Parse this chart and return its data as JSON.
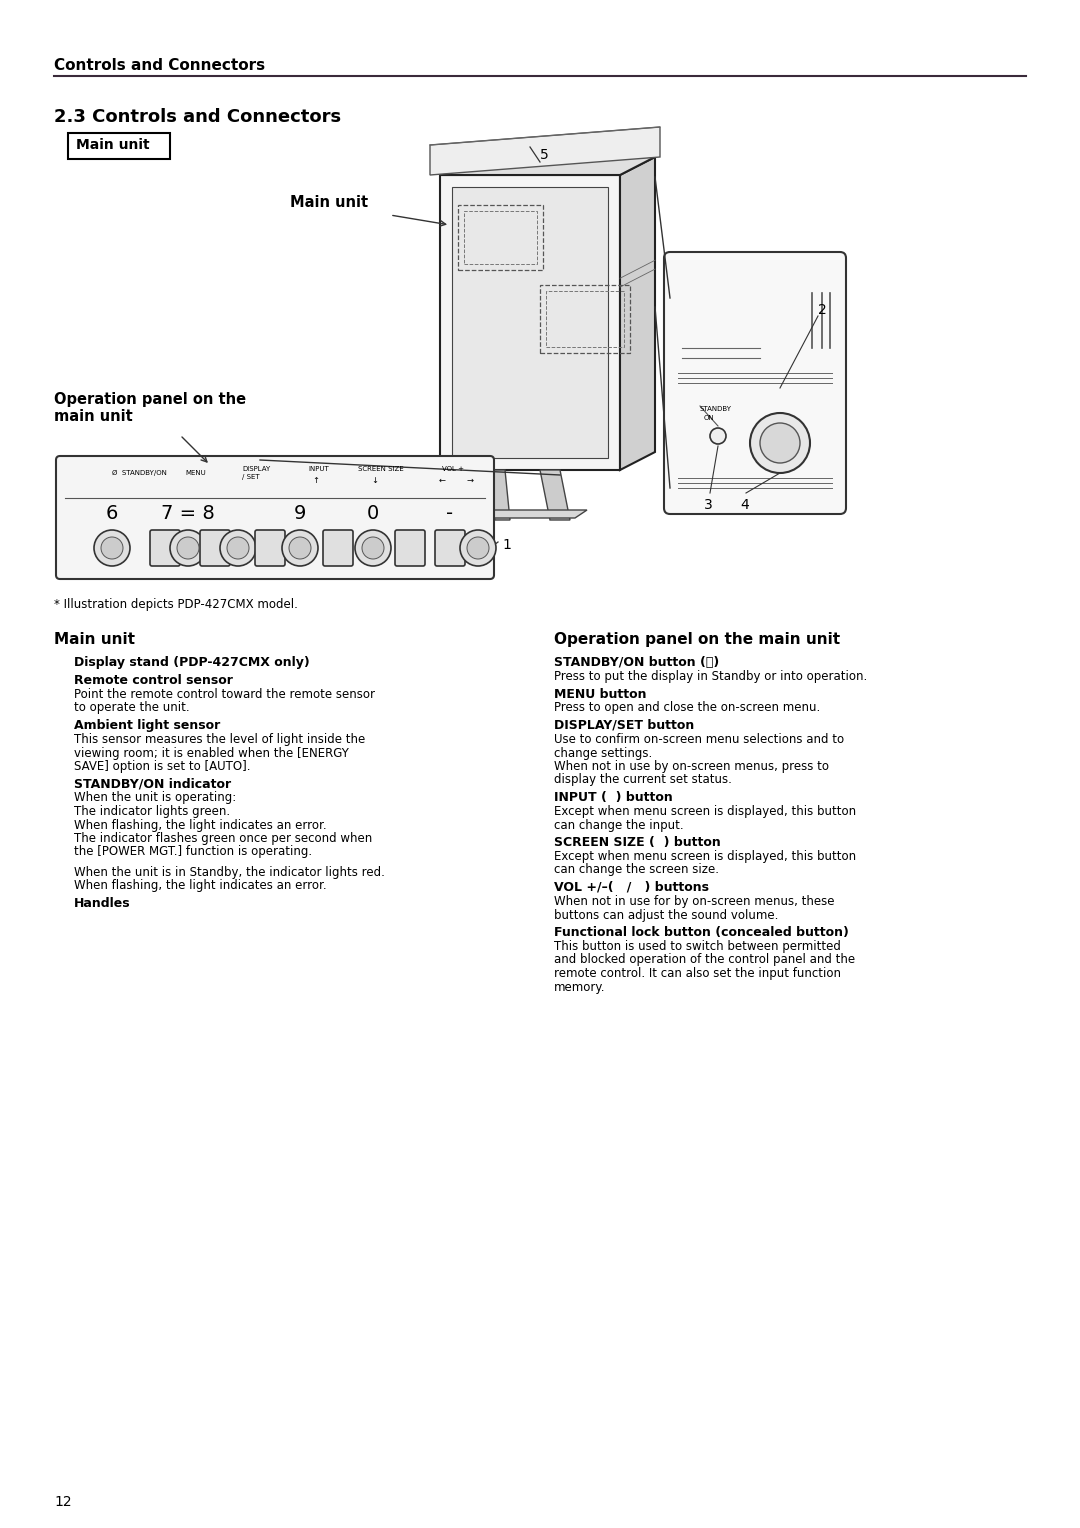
{
  "page_title": "Controls and Connectors",
  "section_title": "2.3 Controls and Connectors",
  "main_unit_label": "Main unit",
  "diagram_label_main_unit": "Main unit",
  "diagram_label_operation_panel": "Operation panel on the\nmain unit",
  "diagram_number_5": "5",
  "diagram_number_2": "2",
  "diagram_number_3": "3",
  "diagram_number_4": "4",
  "diagram_number_1": "1",
  "illustration_note": "* Illustration depicts PDP-427CMX model.",
  "left_col_title": "Main unit",
  "left_entries": [
    {
      "bold": "Display stand (PDP-427CMX only)",
      "text": ""
    },
    {
      "bold": "Remote control sensor",
      "text": "Point the remote control toward the remote sensor\nto operate the unit."
    },
    {
      "bold": "Ambient light sensor",
      "text": "This sensor measures the level of light inside the\nviewing room; it is enabled when the [ENERGY\nSAVE] option is set to [AUTO]."
    },
    {
      "bold": "STANDBY/ON indicator",
      "text": "When the unit is operating:\nThe indicator lights green.\nWhen flashing, the light indicates an error.\nThe indicator flashes green once per second when\nthe [POWER MGT.] function is operating.\n\nWhen the unit is in Standby, the indicator lights red.\nWhen flashing, the light indicates an error."
    },
    {
      "bold": "Handles",
      "text": ""
    }
  ],
  "right_col_title": "Operation panel on the main unit",
  "right_entries": [
    {
      "bold": "STANDBY/ON button (⏻)",
      "text": "Press to put the display in Standby or into operation."
    },
    {
      "bold": "MENU button",
      "text": "Press to open and close the on-screen menu."
    },
    {
      "bold": "DISPLAY/SET button",
      "text": "Use to confirm on-screen menu selections and to\nchange settings.\nWhen not in use by on-screen menus, press to\ndisplay the current set status."
    },
    {
      "bold": "INPUT (  ) button",
      "text": "Except when menu screen is displayed, this button\ncan change the input."
    },
    {
      "bold": "SCREEN SIZE (  ) button",
      "text": "Except when menu screen is displayed, this button\ncan change the screen size."
    },
    {
      "bold": "VOL +/–(   /   ) buttons",
      "text": "When not in use for by on-screen menus, these\nbuttons can adjust the sound volume."
    },
    {
      "bold": "Functional lock button (concealed button)",
      "text": "This button is used to switch between permitted\nand blocked operation of the control panel and the\nremote control. It can also set the input function\nmemory."
    }
  ],
  "page_number": "12",
  "bg_color": "#ffffff",
  "text_color": "#000000",
  "line_color": "#3a2a3a"
}
